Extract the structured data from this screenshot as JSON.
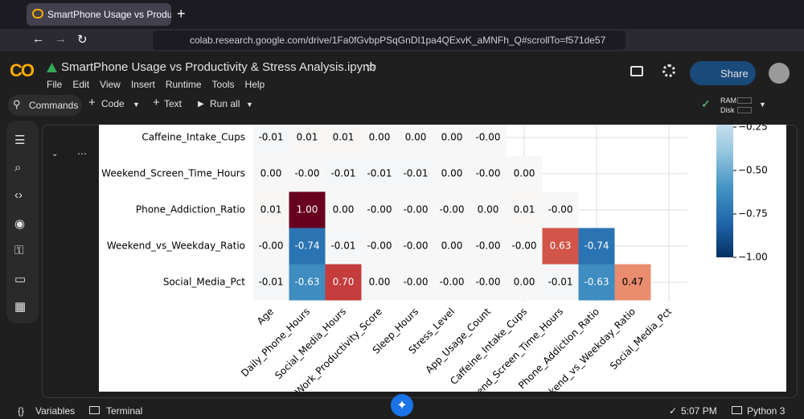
{
  "browser": {
    "tab_title": "SmartPhone Usage vs Productivity",
    "url": "colab.research.google.com/drive/1Fa0fGvbpPSqGnDI1pa4QExvK_aMNFh_Q#scrollTo=f571de57"
  },
  "header": {
    "logo": "CO",
    "notebook_title": "SmartPhone Usage vs Productivity & Stress Analysis.ipynb",
    "menu": [
      "File",
      "Edit",
      "View",
      "Insert",
      "Runtime",
      "Tools",
      "Help"
    ],
    "share": "Share"
  },
  "toolbar": {
    "commands": "Commands",
    "code": "Code",
    "text": "Text",
    "run_all": "Run all",
    "ram": "RAM",
    "disk": "Disk"
  },
  "chart_data": {
    "type": "heatmap",
    "columns": [
      "Age",
      "Daily_Phone_Hours",
      "Social_Media_Hours",
      "Work_Productivity_Score",
      "Sleep_Hours",
      "Stress_Level",
      "App_Usage_Count",
      "Caffeine_Intake_Cups",
      "Weekend_Screen_Time_Hours",
      "Phone_Addiction_Ratio",
      "Weekend_vs_Weekday_Ratio",
      "Social_Media_Pct"
    ],
    "rows": [
      {
        "name": "Caffeine_Intake_Cups",
        "values": [
          -0.01,
          0.01,
          0.01,
          0,
          0,
          0,
          0
        ],
        "value_labels": [
          "-0.01",
          "0.01",
          "0.01",
          "0.00",
          "0.00",
          "0.00",
          "-0.00"
        ]
      },
      {
        "name": "Weekend_Screen_Time_Hours",
        "values": [
          0,
          0,
          -0.01,
          -0.01,
          -0.01,
          0,
          0,
          0
        ],
        "value_labels": [
          "0.00",
          "-0.00",
          "-0.01",
          "-0.01",
          "-0.01",
          "0.00",
          "-0.00",
          "0.00"
        ]
      },
      {
        "name": "Phone_Addiction_Ratio",
        "values": [
          0.01,
          1,
          0,
          0,
          0,
          0,
          0,
          0.01,
          0
        ],
        "value_labels": [
          "0.01",
          "1.00",
          "0.00",
          "-0.00",
          "-0.00",
          "-0.00",
          "0.00",
          "0.01",
          "-0.00"
        ]
      },
      {
        "name": "Weekend_vs_Weekday_Ratio",
        "values": [
          0,
          -0.74,
          -0.01,
          0,
          0,
          0,
          0,
          0,
          0.63,
          -0.74
        ],
        "value_labels": [
          "-0.00",
          "-0.74",
          "-0.01",
          "-0.00",
          "-0.00",
          "0.00",
          "-0.00",
          "-0.00",
          "0.63",
          "-0.74"
        ]
      },
      {
        "name": "Social_Media_Pct",
        "values": [
          -0.01,
          -0.63,
          0.7,
          0,
          0,
          0,
          0,
          0,
          -0.01,
          -0.63,
          0.47
        ],
        "value_labels": [
          "-0.01",
          "-0.63",
          "0.70",
          "0.00",
          "-0.00",
          "-0.00",
          "-0.00",
          "0.00",
          "-0.01",
          "-0.63",
          "0.47"
        ]
      }
    ],
    "colorbar": {
      "vlim": [
        -1,
        1
      ],
      "ticks": [
        {
          "value": -0.25,
          "label": "−0.25"
        },
        {
          "value": -0.5,
          "label": "−0.50"
        },
        {
          "value": -0.75,
          "label": "−0.75"
        },
        {
          "value": -1,
          "label": "−1.00"
        }
      ]
    }
  },
  "status": {
    "variables": "Variables",
    "terminal": "Terminal",
    "time": "5:07 PM",
    "runtime": "Python 3"
  }
}
